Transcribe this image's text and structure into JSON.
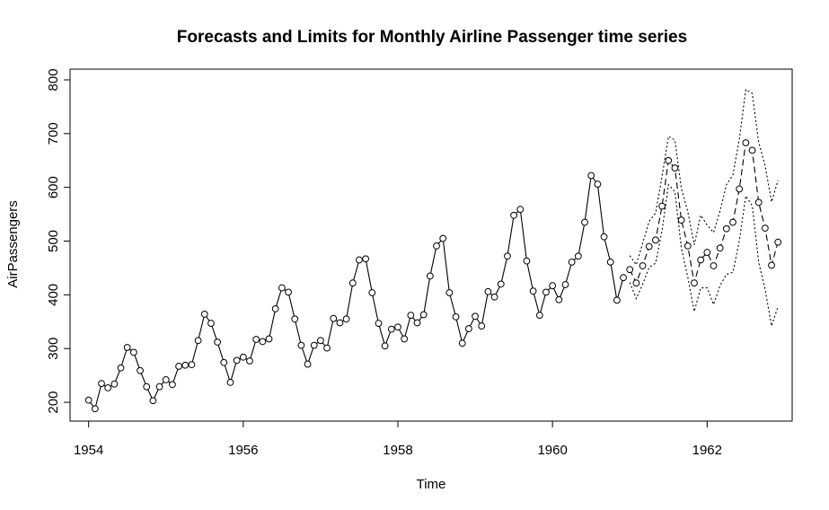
{
  "chart_data": {
    "type": "line",
    "title": "Forecasts and Limits for Monthly Airline Passenger time series",
    "xlabel": "Time",
    "ylabel": "AirPassengers",
    "xlim": [
      1953.76,
      1963.1
    ],
    "ylim": [
      165,
      820
    ],
    "xticks": [
      "1954",
      "1956",
      "1958",
      "1960",
      "1962"
    ],
    "yticks": [
      "200",
      "300",
      "400",
      "500",
      "600",
      "700",
      "800"
    ],
    "grid": false,
    "legend": "none",
    "colors": {
      "line": "#000000",
      "background": "#ffffff"
    },
    "series": [
      {
        "role": "observed",
        "style": "solid line with circles",
        "x_start": 1954.0,
        "step": 0.0833333,
        "values": [
          204,
          188,
          235,
          227,
          234,
          264,
          302,
          293,
          259,
          229,
          203,
          229,
          242,
          233,
          267,
          269,
          270,
          315,
          364,
          347,
          312,
          274,
          237,
          278,
          284,
          277,
          317,
          313,
          318,
          374,
          413,
          405,
          355,
          306,
          271,
          306,
          315,
          301,
          356,
          348,
          355,
          422,
          465,
          467,
          404,
          347,
          305,
          336,
          340,
          318,
          362,
          348,
          363,
          435,
          491,
          505,
          404,
          359,
          310,
          337,
          360,
          342,
          406,
          396,
          420,
          472,
          548,
          559,
          463,
          407,
          362,
          405,
          417,
          391,
          419,
          461,
          472,
          535,
          622,
          606,
          508,
          461,
          390,
          432
        ]
      },
      {
        "role": "forecast",
        "style": "dashed line with circles",
        "x_start": 1961.0,
        "step": 0.0833333,
        "values": [
          447,
          422,
          454,
          490,
          502,
          565,
          650,
          636,
          539,
          491,
          422,
          465,
          479,
          454,
          487,
          523,
          535,
          597,
          683,
          669,
          572,
          524,
          455,
          498
        ]
      },
      {
        "role": "upper limit",
        "style": "dotted line",
        "x_start": 1961.0,
        "step": 0.0833333,
        "values": [
          473,
          456,
          496,
          537,
          552,
          620,
          695,
          688,
          598,
          555,
          493,
          548,
          530,
          516,
          556,
          605,
          623,
          690,
          782,
          775,
          684,
          640,
          573,
          613
        ]
      },
      {
        "role": "lower limit",
        "style": "dotted line",
        "x_start": 1961.0,
        "step": 0.0833333,
        "values": [
          423,
          393,
          420,
          451,
          459,
          519,
          605,
          592,
          487,
          433,
          369,
          413,
          413,
          382,
          417,
          438,
          442,
          501,
          584,
          566,
          461,
          410,
          342,
          378
        ]
      }
    ]
  }
}
